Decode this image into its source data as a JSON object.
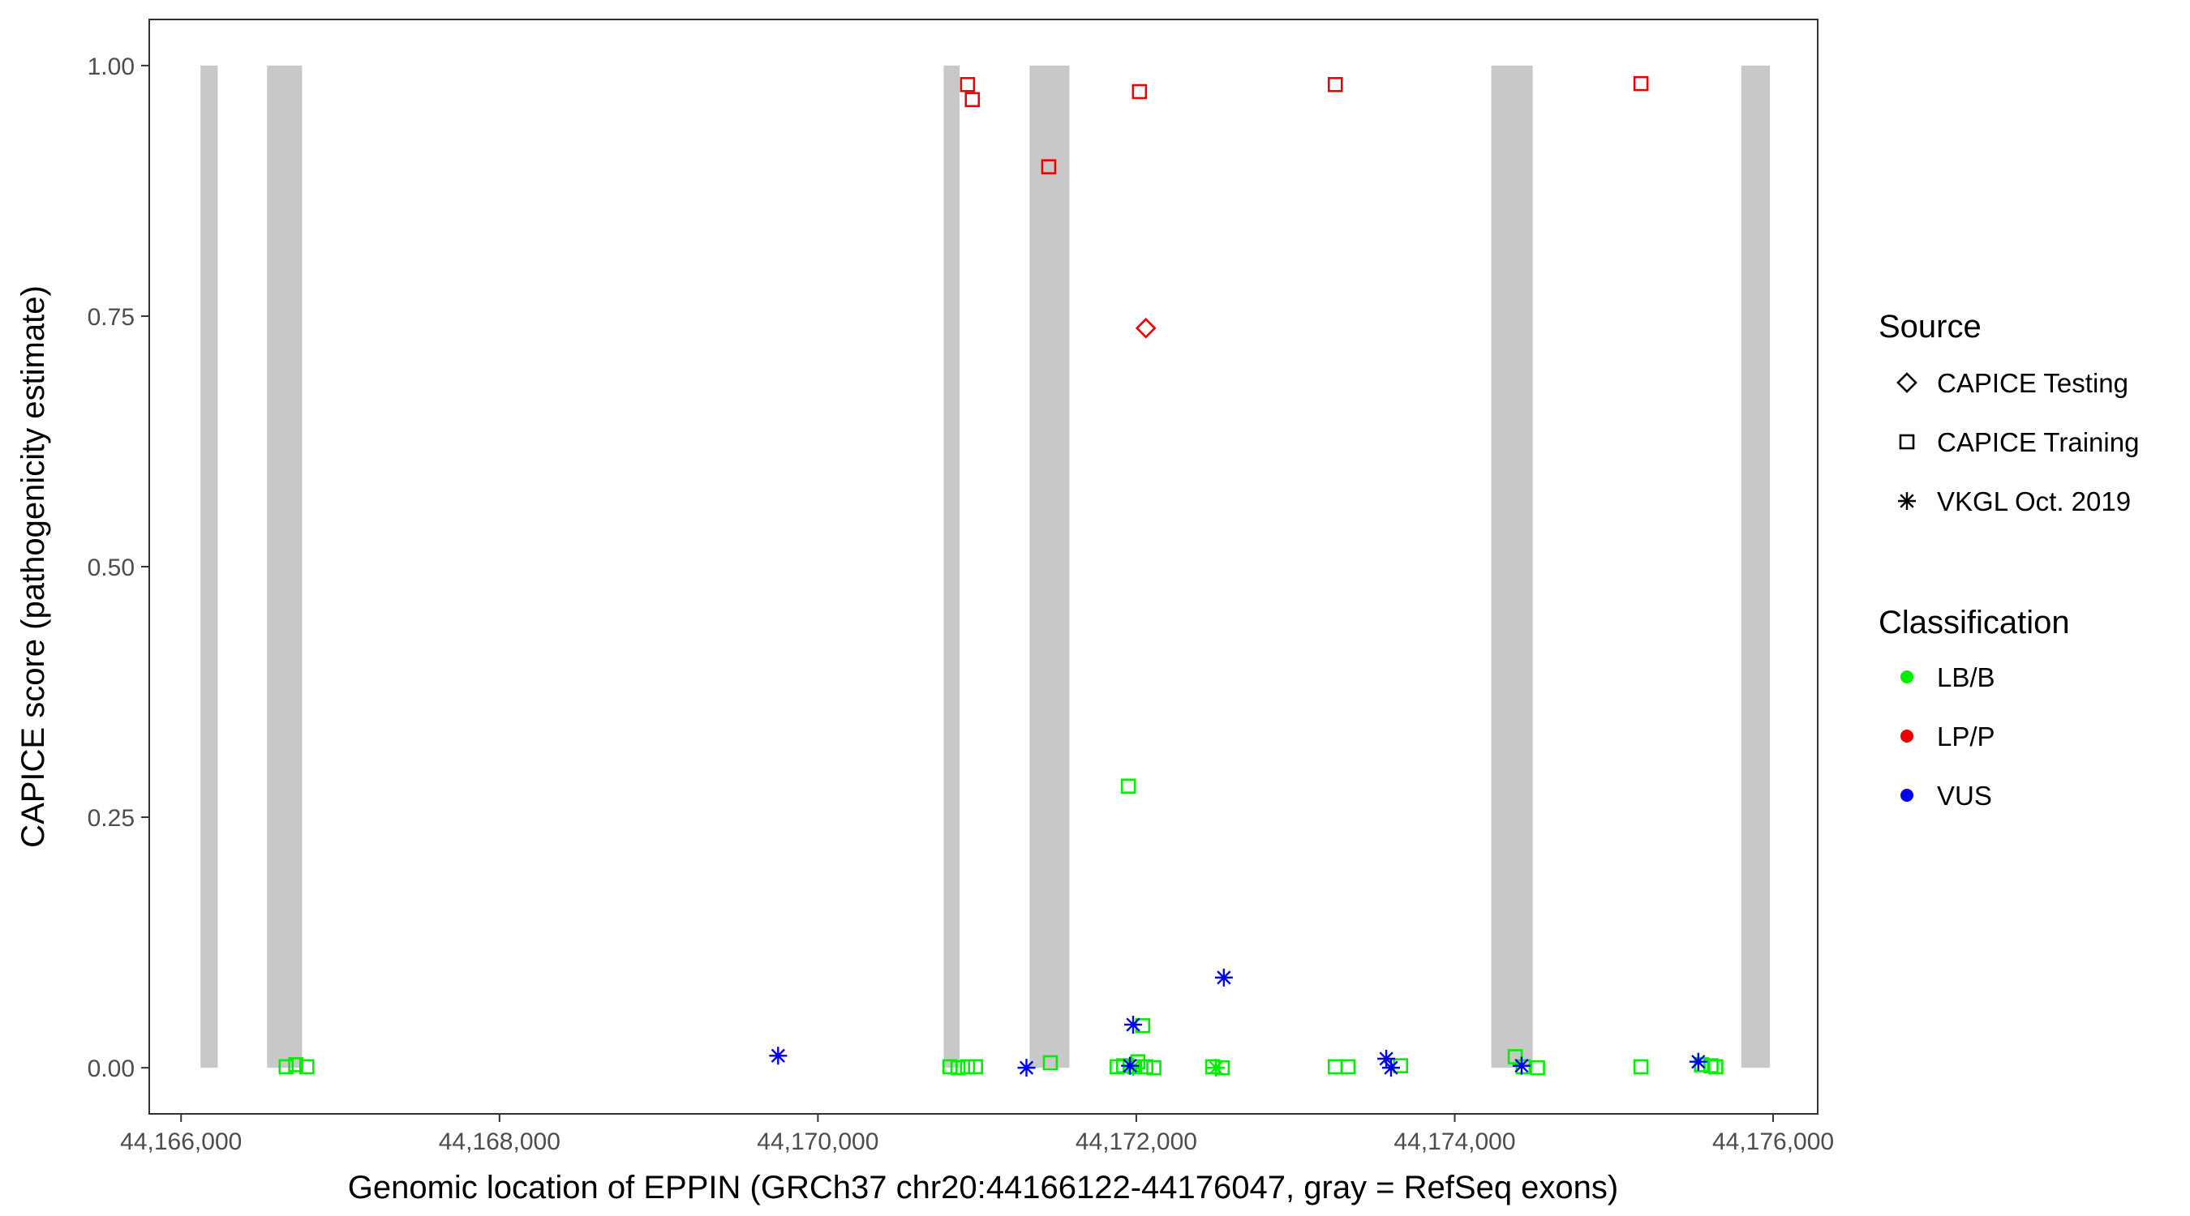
{
  "chart_data": {
    "type": "scatter",
    "title": "",
    "xlabel": "Genomic location of EPPIN (GRCh37 chr20:44166122-44176047, gray = RefSeq exons)",
    "ylabel": "CAPICE score (pathogenicity estimate)",
    "xlim": [
      44165800,
      44176280
    ],
    "ylim": [
      -0.046,
      1.046
    ],
    "x_ticks": [
      44166000,
      44168000,
      44170000,
      44172000,
      44174000,
      44176000
    ],
    "x_tick_labels": [
      "44,166,000",
      "44,168,000",
      "44,170,000",
      "44,172,000",
      "44,174,000",
      "44,176,000"
    ],
    "y_ticks": [
      0,
      0.25,
      0.5,
      0.75,
      1.0
    ],
    "y_tick_labels": [
      "0.00",
      "0.25",
      "0.50",
      "0.75",
      "1.00"
    ],
    "grid": false,
    "legend_placement": "right",
    "exons": [
      [
        44166122,
        44166230
      ],
      [
        44166540,
        44166760
      ],
      [
        44170790,
        44170890
      ],
      [
        44171330,
        44171580
      ],
      [
        44174230,
        44174490
      ],
      [
        44175800,
        44175980
      ]
    ],
    "exon_color": "#c8c8c8",
    "legends": {
      "source": {
        "title": "Source",
        "items": [
          {
            "label": "CAPICE Testing",
            "shape": "diamond"
          },
          {
            "label": "CAPICE Training",
            "shape": "square"
          },
          {
            "label": "VKGL Oct. 2019",
            "shape": "asterisk"
          }
        ]
      },
      "classification": {
        "title": "Classification",
        "items": [
          {
            "label": "LB/B",
            "color": "#00ee00"
          },
          {
            "label": "LP/P",
            "color": "#ee0000"
          },
          {
            "label": "VUS",
            "color": "#0000ee"
          }
        ]
      }
    },
    "series": [
      {
        "source": "CAPICE Training",
        "classification": "LP/P",
        "shape": "square",
        "color": "#ee0000",
        "points": [
          [
            44170940,
            0.981
          ],
          [
            44170970,
            0.966
          ],
          [
            44171450,
            0.899
          ],
          [
            44172020,
            0.974
          ],
          [
            44173250,
            0.981
          ],
          [
            44175170,
            0.982
          ]
        ]
      },
      {
        "source": "CAPICE Testing",
        "classification": "LP/P",
        "shape": "diamond",
        "color": "#ee0000",
        "points": [
          [
            44172060,
            0.738
          ]
        ]
      },
      {
        "source": "CAPICE Training",
        "classification": "LB/B",
        "shape": "square",
        "color": "#00ee00",
        "points": [
          [
            44166660,
            0.001
          ],
          [
            44166720,
            0.003
          ],
          [
            44166790,
            0.001
          ],
          [
            44170830,
            0.001
          ],
          [
            44170880,
            0.0
          ],
          [
            44170940,
            0.001
          ],
          [
            44170990,
            0.001
          ],
          [
            44171460,
            0.005
          ],
          [
            44171880,
            0.001
          ],
          [
            44171920,
            0.002
          ],
          [
            44171950,
            0.281
          ],
          [
            44171990,
            0.001
          ],
          [
            44172010,
            0.006
          ],
          [
            44172040,
            0.042
          ],
          [
            44172060,
            0.001
          ],
          [
            44172110,
            0.0
          ],
          [
            44172480,
            0.001
          ],
          [
            44172540,
            0.0
          ],
          [
            44173250,
            0.001
          ],
          [
            44173330,
            0.001
          ],
          [
            44173660,
            0.002
          ],
          [
            44174380,
            0.011
          ],
          [
            44174430,
            0.001
          ],
          [
            44174520,
            0.0
          ],
          [
            44175170,
            0.001
          ],
          [
            44175550,
            0.003
          ],
          [
            44175610,
            0.002
          ],
          [
            44175640,
            0.001
          ]
        ]
      },
      {
        "source": "VKGL Oct. 2019",
        "classification": "LB/B",
        "shape": "asterisk",
        "color": "#00ee00",
        "points": [
          [
            44171980,
            0.001
          ],
          [
            44172500,
            0.0
          ]
        ]
      },
      {
        "source": "VKGL Oct. 2019",
        "classification": "VUS",
        "shape": "asterisk",
        "color": "#0000ee",
        "points": [
          [
            44169750,
            0.012
          ],
          [
            44171310,
            0.0
          ],
          [
            44171980,
            0.043
          ],
          [
            44171960,
            0.002
          ],
          [
            44172550,
            0.09
          ],
          [
            44173570,
            0.009
          ],
          [
            44173600,
            0.0
          ],
          [
            44174420,
            0.002
          ],
          [
            44175530,
            0.006
          ]
        ]
      }
    ]
  }
}
